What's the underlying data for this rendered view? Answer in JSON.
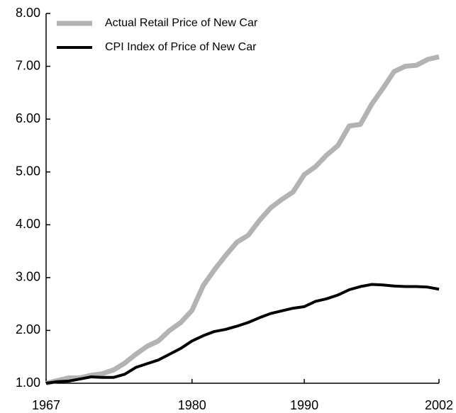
{
  "chart_data": {
    "type": "line",
    "x": [
      1967,
      1968,
      1969,
      1970,
      1971,
      1972,
      1973,
      1974,
      1975,
      1976,
      1977,
      1978,
      1979,
      1980,
      1981,
      1982,
      1983,
      1984,
      1985,
      1986,
      1987,
      1988,
      1989,
      1990,
      1991,
      1992,
      1993,
      1994,
      1995,
      1996,
      1997,
      1998,
      1999,
      2000,
      2001,
      2002
    ],
    "series": [
      {
        "name": "Actual Retail Price of New Car",
        "color": "#b3b3b3",
        "values": [
          1.0,
          1.05,
          1.1,
          1.1,
          1.15,
          1.18,
          1.25,
          1.38,
          1.55,
          1.7,
          1.8,
          2.0,
          2.15,
          2.38,
          2.85,
          3.15,
          3.42,
          3.67,
          3.8,
          4.08,
          4.32,
          4.48,
          4.62,
          4.95,
          5.1,
          5.32,
          5.5,
          5.87,
          5.9,
          6.28,
          6.58,
          6.9,
          7.0,
          7.02,
          7.13,
          7.18
        ]
      },
      {
        "name": "CPI Index of Price of New Car",
        "color": "#000000",
        "values": [
          1.0,
          1.03,
          1.04,
          1.08,
          1.12,
          1.11,
          1.11,
          1.17,
          1.3,
          1.37,
          1.44,
          1.55,
          1.66,
          1.8,
          1.9,
          1.98,
          2.02,
          2.08,
          2.15,
          2.24,
          2.32,
          2.37,
          2.42,
          2.45,
          2.55,
          2.6,
          2.67,
          2.77,
          2.83,
          2.87,
          2.86,
          2.84,
          2.83,
          2.83,
          2.82,
          2.78
        ]
      }
    ],
    "xlim": [
      1967,
      2002
    ],
    "xticks": [
      1967,
      1980,
      1990,
      2002
    ],
    "ylim": [
      1,
      8
    ],
    "yticks": [
      {
        "value": 1,
        "label": "1.00"
      },
      {
        "value": 2,
        "label": "2.00"
      },
      {
        "value": 3,
        "label": "3.00"
      },
      {
        "value": 4,
        "label": "4.00"
      },
      {
        "value": 5,
        "label": "5.00"
      },
      {
        "value": 6,
        "label": "6.00"
      },
      {
        "value": 7,
        "label": "7.00"
      },
      {
        "value": 8,
        "label": "8.00"
      }
    ],
    "legend": "upper left"
  }
}
